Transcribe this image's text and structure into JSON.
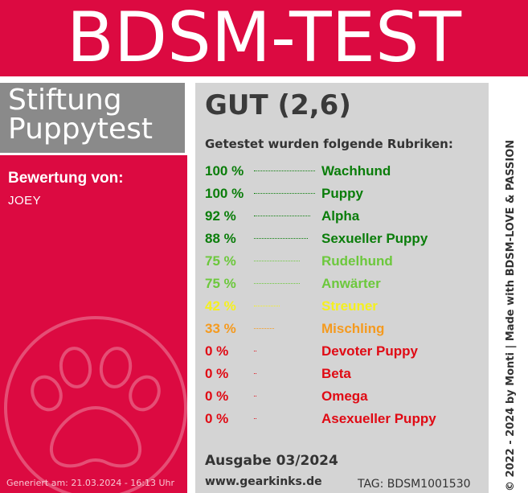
{
  "header": {
    "title": "BDSM-TEST"
  },
  "brand": {
    "line1": "Stiftung",
    "line2": "Puppytest"
  },
  "rating": {
    "label": "Bewertung von:",
    "name": "JOEY"
  },
  "generated": "Generiert am: 21.03.2024 - 16:13 Uhr",
  "grade": "GUT (2,6)",
  "subtitle": "Getestet wurden folgende Rubriken:",
  "results": [
    {
      "percent": "100 %",
      "value": 100,
      "category": "Wachhund",
      "color": "#0a7d0a"
    },
    {
      "percent": "100 %",
      "value": 100,
      "category": "Puppy",
      "color": "#0a7d0a"
    },
    {
      "percent": "92 %",
      "value": 92,
      "category": "Alpha",
      "color": "#0a7d0a"
    },
    {
      "percent": "88 %",
      "value": 88,
      "category": "Sexueller Puppy",
      "color": "#0a7d0a"
    },
    {
      "percent": "75 %",
      "value": 75,
      "category": "Rudelhund",
      "color": "#6cc83c"
    },
    {
      "percent": "75 %",
      "value": 75,
      "category": "Anwärter",
      "color": "#6cc83c"
    },
    {
      "percent": "42 %",
      "value": 42,
      "category": "Streuner",
      "color": "#f5f01e"
    },
    {
      "percent": "33 %",
      "value": 33,
      "category": "Mischling",
      "color": "#f59a1e"
    },
    {
      "percent": "0 %",
      "value": 0,
      "category": "Devoter Puppy",
      "color": "#e00a14"
    },
    {
      "percent": "0 %",
      "value": 0,
      "category": "Beta",
      "color": "#e00a14"
    },
    {
      "percent": "0 %",
      "value": 0,
      "category": "Omega",
      "color": "#e00a14"
    },
    {
      "percent": "0 %",
      "value": 0,
      "category": "Asexueller Puppy",
      "color": "#e00a14"
    }
  ],
  "edition": "Ausgabe 03/2024",
  "website": "www.gearkinks.de",
  "tag": "TAG: BDSM1001530",
  "credit": "© 2022 - 2024 by Monti | Made with BDSM-LOVE & PASSION",
  "colors": {
    "brand_red": "#dc0a41",
    "panel_gray": "#d4d4d4",
    "label_gray": "#8a8a8a"
  }
}
